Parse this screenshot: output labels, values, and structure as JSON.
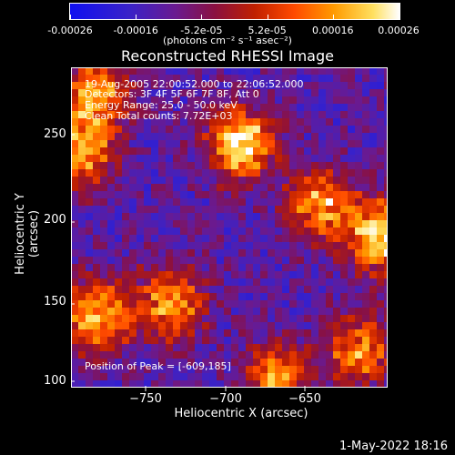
{
  "colorbar": {
    "ticks": [
      "-0.00026",
      "-0.00016",
      "-5.2e-05",
      "5.2e-05",
      "0.00016",
      "0.00026"
    ],
    "units_label": "(photons cm⁻² s⁻¹ asec⁻²)"
  },
  "plot": {
    "title": "Reconstructed RHESSI Image",
    "xlabel": "Heliocentric X (arcsec)",
    "ylabel": "Heliocentric Y (arcsec)",
    "xticks": [
      "−750",
      "−700",
      "−650"
    ],
    "yticks": [
      "250",
      "200",
      "150",
      "100"
    ],
    "info_lines": [
      "19-Aug-2005 22:00:52.000 to 22:06:52.000",
      "Detectors: 3F 4F 5F 6F 7F 8F, Att 0",
      "Energy Range: 25.0 - 50.0 keV",
      "Clean    Total counts: 7.72E+03"
    ],
    "peak_text": "Position of Peak = [-609,185]"
  },
  "footer": {
    "timestamp": "1-May-2022 18:16"
  },
  "chart_data": {
    "type": "heatmap",
    "title": "Reconstructed RHESSI Image",
    "xlabel": "Heliocentric X (arcsec)",
    "ylabel": "Heliocentric Y (arcsec)",
    "xlim": [
      -795,
      -605
    ],
    "ylim": [
      100,
      280
    ],
    "colorbar_range": [
      -0.00026,
      0.00026
    ],
    "colorbar_ticks": [
      -0.00026,
      -0.00016,
      -5.2e-05,
      5.2e-05,
      0.00016,
      0.00026
    ],
    "peak_position": [
      -609,
      185
    ],
    "hotspots": [
      {
        "x": -693,
        "y": 237,
        "value": 0.00026
      },
      {
        "x": -609,
        "y": 185,
        "value": 0.00026
      },
      {
        "x": -645,
        "y": 202,
        "value": 0.00018
      },
      {
        "x": -790,
        "y": 233,
        "value": 0.0002
      },
      {
        "x": -780,
        "y": 265,
        "value": 0.00017
      },
      {
        "x": -780,
        "y": 140,
        "value": 0.0002
      },
      {
        "x": -735,
        "y": 148,
        "value": 0.00018
      },
      {
        "x": -672,
        "y": 105,
        "value": 0.00016
      },
      {
        "x": -622,
        "y": 121,
        "value": 0.00015
      }
    ]
  }
}
